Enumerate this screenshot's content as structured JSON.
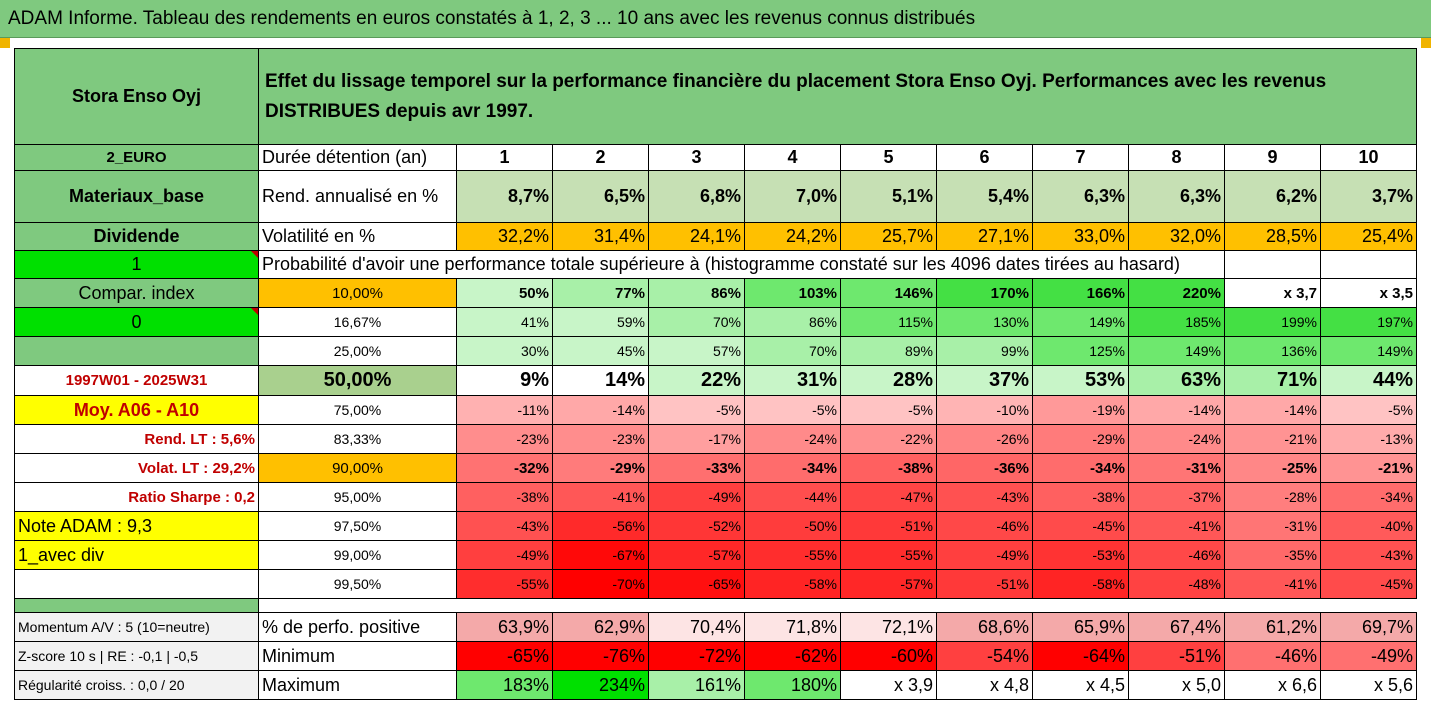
{
  "title": "ADAM Informe. Tableau des rendements en euros constatés à 1, 2, 3 ... 10 ans avec les revenus connus distribués",
  "header": {
    "fund_name": "Stora Enso Oyj",
    "description": "Effet du lissage temporel sur la performance financière du placement Stora Enso Oyj. Performances avec les revenus DISTRIBUES depuis avr 1997."
  },
  "left_panel": {
    "currency": "2_EURO",
    "sector": "Materiaux_base",
    "dividend_label": "Dividende",
    "dividend_value": "1",
    "compar_index": "Compar. index",
    "compar_value": "0",
    "period": "1997W01 - 2025W31",
    "moy": "Moy. A06 - A10",
    "rend_lt": "Rend. LT :   5,6%",
    "volat_lt": "Volat. LT :   29,2%",
    "ratio_sharpe": "Ratio Sharpe :   0,2",
    "note_adam": "Note ADAM : 9,3",
    "avec_div": "1_avec div",
    "momentum": "Momentum A/V : 5 (10=neutre)",
    "zscore": "Z-score 10 s  | RE : -0,1 | -0,5",
    "regularite": "Régularité croiss. : 0,0 / 20"
  },
  "row_labels": {
    "duree": "Durée détention (an)",
    "rend": "Rend. annualisé en %",
    "volat": "Volatilité en %",
    "proba": "Probabilité d'avoir une performance totale supérieure à (histogramme constaté sur les 4096 dates tirées au hasard)",
    "perf_pos": "% de perfo. positive",
    "minimum": "Minimum",
    "maximum": "Maximum"
  },
  "years": [
    "1",
    "2",
    "3",
    "4",
    "5",
    "6",
    "7",
    "8",
    "9",
    "10"
  ],
  "rendement": [
    "8,7%",
    "6,5%",
    "6,8%",
    "7,0%",
    "5,1%",
    "5,4%",
    "6,3%",
    "6,3%",
    "6,2%",
    "3,7%"
  ],
  "volatilite": [
    "32,2%",
    "31,4%",
    "24,1%",
    "24,2%",
    "25,7%",
    "27,1%",
    "33,0%",
    "32,0%",
    "28,5%",
    "25,4%"
  ],
  "prob_rows": [
    {
      "level": "10,00%",
      "values": [
        "50%",
        "77%",
        "86%",
        "103%",
        "146%",
        "170%",
        "166%",
        "220%",
        "x 3,7",
        "x 3,5"
      ]
    },
    {
      "level": "16,67%",
      "values": [
        "41%",
        "59%",
        "70%",
        "86%",
        "115%",
        "130%",
        "149%",
        "185%",
        "199%",
        "197%"
      ]
    },
    {
      "level": "25,00%",
      "values": [
        "30%",
        "45%",
        "57%",
        "70%",
        "89%",
        "99%",
        "125%",
        "149%",
        "136%",
        "149%"
      ]
    },
    {
      "level": "50,00%",
      "values": [
        "9%",
        "14%",
        "22%",
        "31%",
        "28%",
        "37%",
        "53%",
        "63%",
        "71%",
        "44%"
      ]
    },
    {
      "level": "75,00%",
      "values": [
        "-11%",
        "-14%",
        "-5%",
        "-5%",
        "-5%",
        "-10%",
        "-19%",
        "-14%",
        "-14%",
        "-5%"
      ]
    },
    {
      "level": "83,33%",
      "values": [
        "-23%",
        "-23%",
        "-17%",
        "-24%",
        "-22%",
        "-26%",
        "-29%",
        "-24%",
        "-21%",
        "-13%"
      ]
    },
    {
      "level": "90,00%",
      "values": [
        "-32%",
        "-29%",
        "-33%",
        "-34%",
        "-38%",
        "-36%",
        "-34%",
        "-31%",
        "-25%",
        "-21%"
      ]
    },
    {
      "level": "95,00%",
      "values": [
        "-38%",
        "-41%",
        "-49%",
        "-44%",
        "-47%",
        "-43%",
        "-38%",
        "-37%",
        "-28%",
        "-34%"
      ]
    },
    {
      "level": "97,50%",
      "values": [
        "-43%",
        "-56%",
        "-52%",
        "-50%",
        "-51%",
        "-46%",
        "-45%",
        "-41%",
        "-31%",
        "-40%"
      ]
    },
    {
      "level": "99,00%",
      "values": [
        "-49%",
        "-67%",
        "-57%",
        "-55%",
        "-55%",
        "-49%",
        "-53%",
        "-46%",
        "-35%",
        "-43%"
      ]
    },
    {
      "level": "99,50%",
      "values": [
        "-55%",
        "-70%",
        "-65%",
        "-58%",
        "-57%",
        "-51%",
        "-58%",
        "-48%",
        "-41%",
        "-45%"
      ]
    }
  ],
  "perf_pos": [
    "63,9%",
    "62,9%",
    "70,4%",
    "71,8%",
    "72,1%",
    "68,6%",
    "65,9%",
    "67,4%",
    "61,2%",
    "69,7%"
  ],
  "minimum": [
    "-65%",
    "-76%",
    "-72%",
    "-62%",
    "-60%",
    "-54%",
    "-64%",
    "-51%",
    "-46%",
    "-49%"
  ],
  "maximum": [
    "183%",
    "234%",
    "161%",
    "180%",
    "x 3,9",
    "x 4,8",
    "x 4,5",
    "x 5,0",
    "x 6,6",
    "x 5,6"
  ],
  "colors": {
    "header_green": "#7fc97f",
    "lime": "#00e000",
    "orange": "#ffc000",
    "yellow": "#ffff00",
    "label_red": "#c00000"
  }
}
